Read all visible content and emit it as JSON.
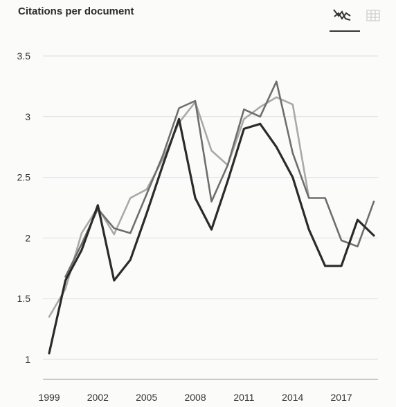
{
  "title": "Citations per document",
  "toolbar": {
    "line_view_icon": "line-chart-icon",
    "table_view_icon": "table-icon",
    "active": "line_view"
  },
  "chart_data": {
    "type": "line",
    "title": "Citations per document",
    "xlabel": "",
    "ylabel": "",
    "x": [
      1999,
      2000,
      2001,
      2002,
      2003,
      2004,
      2005,
      2006,
      2007,
      2008,
      2009,
      2010,
      2011,
      2012,
      2013,
      2014,
      2015,
      2016,
      2017,
      2018,
      2019
    ],
    "x_ticks": [
      "1999",
      "2002",
      "2005",
      "2008",
      "2011",
      "2014",
      "2017"
    ],
    "y_ticks": [
      "1",
      "1.5",
      "2",
      "2.5",
      "3",
      "3.5"
    ],
    "xlim": [
      1999,
      2019
    ],
    "ylim": [
      0.9,
      3.6
    ],
    "grid": true,
    "series": [
      {
        "color": "#2b2b2b",
        "values": [
          1.05,
          1.65,
          1.9,
          2.27,
          1.65,
          1.82,
          2.2,
          2.6,
          2.98,
          2.33,
          2.07,
          2.47,
          2.9,
          2.94,
          2.75,
          2.5,
          2.07,
          1.77,
          1.77,
          2.15,
          2.02
        ]
      },
      {
        "color": "#6e6e6e",
        "values": [
          null,
          1.68,
          1.95,
          2.24,
          2.08,
          2.04,
          2.36,
          2.68,
          3.07,
          3.13,
          2.3,
          2.6,
          3.06,
          3.0,
          3.29,
          2.7,
          2.33,
          2.33,
          1.98,
          1.93,
          2.3
        ]
      },
      {
        "color": "#a9a9a9",
        "values": [
          1.35,
          1.58,
          2.04,
          2.25,
          2.03,
          2.33,
          2.4,
          2.65,
          2.95,
          3.12,
          2.72,
          2.6,
          2.98,
          3.08,
          3.16,
          3.1,
          2.33,
          null,
          null,
          null,
          null
        ]
      }
    ]
  }
}
